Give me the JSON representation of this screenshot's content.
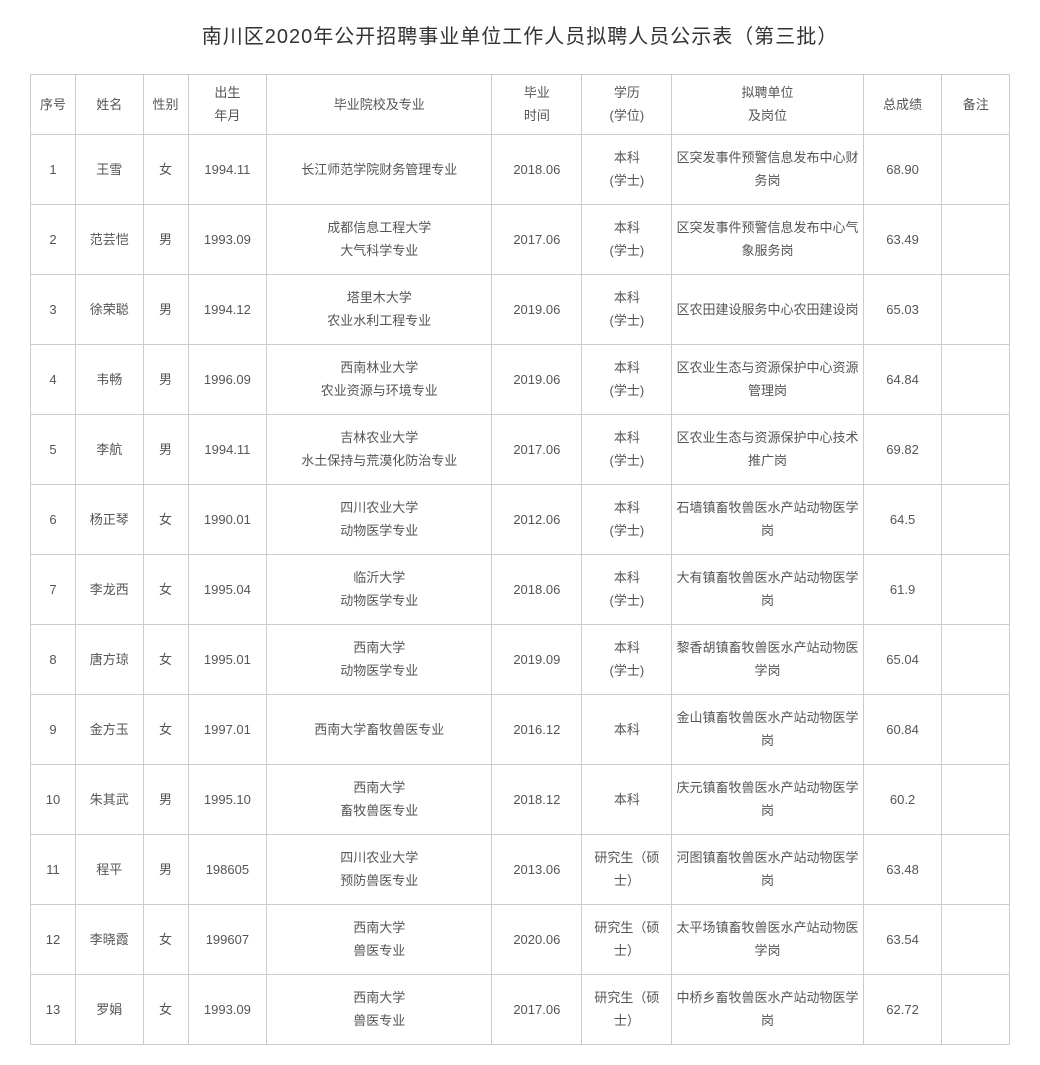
{
  "title": "南川区2020年公开招聘事业单位工作人员拟聘人员公示表（第三批）",
  "headers": {
    "seq": "序号",
    "name": "姓名",
    "gender": "性别",
    "birth": "出生\n年月",
    "school": "毕业院校及专业",
    "grad": "毕业\n时间",
    "degree": "学历\n(学位)",
    "position": "拟聘单位\n及岗位",
    "score": "总成绩",
    "remark": "备注"
  },
  "rows": [
    {
      "seq": "1",
      "name": "王雪",
      "gender": "女",
      "birth": "1994.11",
      "school": "长江师范学院财务管理专业",
      "grad": "2018.06",
      "degree": "本科\n(学士)",
      "position": "区突发事件预警信息发布中心财务岗",
      "score": "68.90",
      "remark": ""
    },
    {
      "seq": "2",
      "name": "范芸恺",
      "gender": "男",
      "birth": "1993.09",
      "school": "成都信息工程大学\n大气科学专业",
      "grad": "2017.06",
      "degree": "本科\n(学士)",
      "position": "区突发事件预警信息发布中心气象服务岗",
      "score": "63.49",
      "remark": ""
    },
    {
      "seq": "3",
      "name": "徐荣聪",
      "gender": "男",
      "birth": "1994.12",
      "school": "塔里木大学\n农业水利工程专业",
      "grad": "2019.06",
      "degree": "本科\n(学士)",
      "position": "区农田建设服务中心农田建设岗",
      "score": "65.03",
      "remark": ""
    },
    {
      "seq": "4",
      "name": "韦畅",
      "gender": "男",
      "birth": "1996.09",
      "school": "西南林业大学\n农业资源与环境专业",
      "grad": "2019.06",
      "degree": "本科\n(学士)",
      "position": "区农业生态与资源保护中心资源管理岗",
      "score": "64.84",
      "remark": ""
    },
    {
      "seq": "5",
      "name": "李航",
      "gender": "男",
      "birth": "1994.11",
      "school": "吉林农业大学\n水土保持与荒漠化防治专业",
      "grad": "2017.06",
      "degree": "本科\n(学士)",
      "position": "区农业生态与资源保护中心技术推广岗",
      "score": "69.82",
      "remark": ""
    },
    {
      "seq": "6",
      "name": "杨正琴",
      "gender": "女",
      "birth": "1990.01",
      "school": "四川农业大学\n动物医学专业",
      "grad": "2012.06",
      "degree": "本科\n(学士)",
      "position": "石墙镇畜牧兽医水产站动物医学岗",
      "score": "64.5",
      "remark": ""
    },
    {
      "seq": "7",
      "name": "李龙西",
      "gender": "女",
      "birth": "1995.04",
      "school": "临沂大学\n动物医学专业",
      "grad": "2018.06",
      "degree": "本科\n(学士)",
      "position": "大有镇畜牧兽医水产站动物医学岗",
      "score": "61.9",
      "remark": ""
    },
    {
      "seq": "8",
      "name": "唐方琼",
      "gender": "女",
      "birth": "1995.01",
      "school": "西南大学\n动物医学专业",
      "grad": "2019.09",
      "degree": "本科\n(学士)",
      "position": "黎香胡镇畜牧兽医水产站动物医学岗",
      "score": "65.04",
      "remark": ""
    },
    {
      "seq": "9",
      "name": "金方玉",
      "gender": "女",
      "birth": "1997.01",
      "school": "西南大学畜牧兽医专业",
      "grad": "2016.12",
      "degree": "本科",
      "position": "金山镇畜牧兽医水产站动物医学岗",
      "score": "60.84",
      "remark": ""
    },
    {
      "seq": "10",
      "name": "朱其武",
      "gender": "男",
      "birth": "1995.10",
      "school": "西南大学\n畜牧兽医专业",
      "grad": "2018.12",
      "degree": "本科",
      "position": "庆元镇畜牧兽医水产站动物医学岗",
      "score": "60.2",
      "remark": ""
    },
    {
      "seq": "11",
      "name": "程平",
      "gender": "男",
      "birth": "198605",
      "school": "四川农业大学\n预防兽医专业",
      "grad": "2013.06",
      "degree": "研究生（硕士）",
      "position": "河图镇畜牧兽医水产站动物医学岗",
      "score": "63.48",
      "remark": ""
    },
    {
      "seq": "12",
      "name": "李晓霞",
      "gender": "女",
      "birth": "199607",
      "school": "西南大学\n兽医专业",
      "grad": "2020.06",
      "degree": "研究生（硕士）",
      "position": "太平场镇畜牧兽医水产站动物医学岗",
      "score": "63.54",
      "remark": ""
    },
    {
      "seq": "13",
      "name": "罗娟",
      "gender": "女",
      "birth": "1993.09",
      "school": "西南大学\n兽医专业",
      "grad": "2017.06",
      "degree": "研究生（硕士）",
      "position": "中桥乡畜牧兽医水产站动物医学岗",
      "score": "62.72",
      "remark": ""
    }
  ]
}
